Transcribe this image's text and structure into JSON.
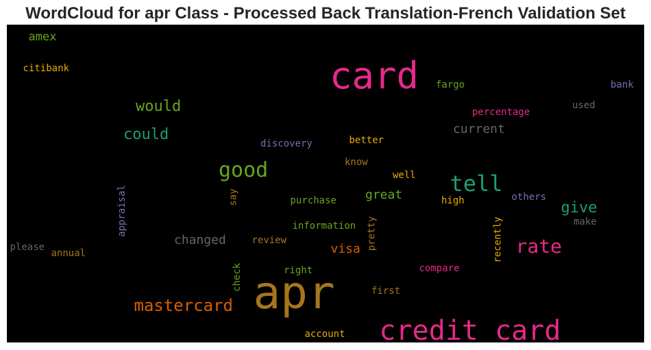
{
  "title": "WordCloud for apr Class - Processed Back Translation-French Validation Set",
  "chart_data": {
    "type": "wordcloud",
    "background": "#000000",
    "colormap": "Dark2",
    "words": [
      {
        "text": "apr",
        "color": "#a6761d",
        "rank": 1,
        "orientation": "horizontal"
      },
      {
        "text": "card",
        "color": "#e7298a",
        "rank": 2,
        "orientation": "horizontal"
      },
      {
        "text": "credit card",
        "color": "#e7298a",
        "rank": 3,
        "orientation": "horizontal"
      },
      {
        "text": "tell",
        "color": "#1b9e77",
        "rank": 4,
        "orientation": "horizontal"
      },
      {
        "text": "good",
        "color": "#66a61e",
        "rank": 5,
        "orientation": "horizontal"
      },
      {
        "text": "rate",
        "color": "#e7298a",
        "rank": 6,
        "orientation": "horizontal"
      },
      {
        "text": "mastercard",
        "color": "#d95f02",
        "rank": 7,
        "orientation": "horizontal"
      },
      {
        "text": "would",
        "color": "#66a61e",
        "rank": 8,
        "orientation": "horizontal"
      },
      {
        "text": "could",
        "color": "#1b9e77",
        "rank": 9,
        "orientation": "horizontal"
      },
      {
        "text": "give",
        "color": "#1b9e77",
        "rank": 10,
        "orientation": "horizontal"
      },
      {
        "text": "current",
        "color": "#666666",
        "rank": 11,
        "orientation": "horizontal"
      },
      {
        "text": "changed",
        "color": "#666666",
        "rank": 12,
        "orientation": "horizontal"
      },
      {
        "text": "great",
        "color": "#66a61e",
        "rank": 13,
        "orientation": "horizontal"
      },
      {
        "text": "visa",
        "color": "#d95f02",
        "rank": 14,
        "orientation": "horizontal"
      },
      {
        "text": "amex",
        "color": "#66a61e",
        "rank": 15,
        "orientation": "horizontal"
      },
      {
        "text": "citibank",
        "color": "#e6ab02",
        "rank": 16,
        "orientation": "horizontal"
      },
      {
        "text": "fargo",
        "color": "#66a61e",
        "rank": 17,
        "orientation": "horizontal"
      },
      {
        "text": "bank",
        "color": "#7570b3",
        "rank": 18,
        "orientation": "horizontal"
      },
      {
        "text": "percentage",
        "color": "#e7298a",
        "rank": 19,
        "orientation": "horizontal"
      },
      {
        "text": "used",
        "color": "#666666",
        "rank": 20,
        "orientation": "horizontal"
      },
      {
        "text": "discovery",
        "color": "#7570b3",
        "rank": 21,
        "orientation": "horizontal"
      },
      {
        "text": "better",
        "color": "#e6ab02",
        "rank": 22,
        "orientation": "horizontal"
      },
      {
        "text": "know",
        "color": "#a6761d",
        "rank": 23,
        "orientation": "horizontal"
      },
      {
        "text": "well",
        "color": "#e6ab02",
        "rank": 24,
        "orientation": "horizontal"
      },
      {
        "text": "say",
        "color": "#a6761d",
        "rank": 25,
        "orientation": "vertical"
      },
      {
        "text": "appraisal",
        "color": "#7570b3",
        "rank": 26,
        "orientation": "vertical"
      },
      {
        "text": "purchase",
        "color": "#66a61e",
        "rank": 27,
        "orientation": "horizontal"
      },
      {
        "text": "high",
        "color": "#e6ab02",
        "rank": 28,
        "orientation": "horizontal"
      },
      {
        "text": "others",
        "color": "#7570b3",
        "rank": 29,
        "orientation": "horizontal"
      },
      {
        "text": "make",
        "color": "#666666",
        "rank": 30,
        "orientation": "horizontal"
      },
      {
        "text": "information",
        "color": "#66a61e",
        "rank": 31,
        "orientation": "horizontal"
      },
      {
        "text": "pretty",
        "color": "#a6761d",
        "rank": 32,
        "orientation": "vertical"
      },
      {
        "text": "recently",
        "color": "#e6ab02",
        "rank": 33,
        "orientation": "vertical"
      },
      {
        "text": "please",
        "color": "#666666",
        "rank": 34,
        "orientation": "horizontal"
      },
      {
        "text": "annual",
        "color": "#a6761d",
        "rank": 35,
        "orientation": "horizontal"
      },
      {
        "text": "review",
        "color": "#a6761d",
        "rank": 36,
        "orientation": "horizontal"
      },
      {
        "text": "check",
        "color": "#66a61e",
        "rank": 37,
        "orientation": "vertical"
      },
      {
        "text": "right",
        "color": "#66a61e",
        "rank": 38,
        "orientation": "horizontal"
      },
      {
        "text": "compare",
        "color": "#e7298a",
        "rank": 39,
        "orientation": "horizontal"
      },
      {
        "text": "first",
        "color": "#a6761d",
        "rank": 40,
        "orientation": "horizontal"
      },
      {
        "text": "account",
        "color": "#e6ab02",
        "rank": 41,
        "orientation": "horizontal"
      }
    ]
  }
}
